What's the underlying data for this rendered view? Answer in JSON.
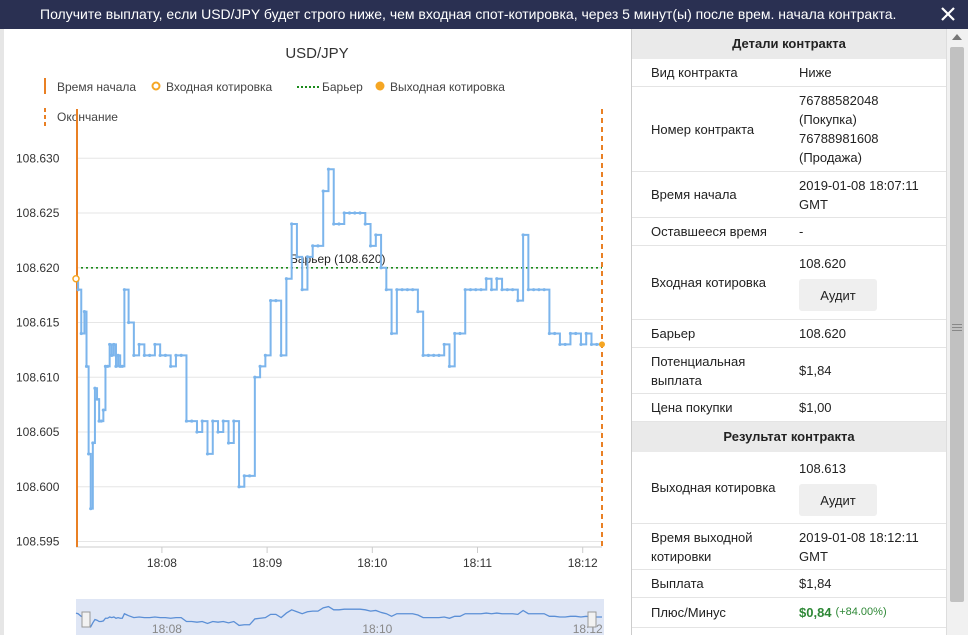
{
  "topbar": {
    "message": "Получите выплату, если USD/JPY будет строго ниже, чем входная спот-котировка, через 5 минут(ы) после врем. начала контракта."
  },
  "chart": {
    "title": "USD/JPY",
    "legend": {
      "start_time": "Время начала",
      "entry_spot": "Входная котировка",
      "barrier": "Барьер",
      "exit_spot": "Выходная котировка",
      "end": "Окончание"
    },
    "barrier_label": "Барьер (108.620)",
    "colors": {
      "line": "#7cb5ec",
      "start_line": "#e98024",
      "barrier": "#1a8a1a",
      "entry": "#f5a623",
      "navigator_fill": "#c9d6ee"
    }
  },
  "chart_data": {
    "type": "line",
    "title": "USD/JPY",
    "xlabel": "",
    "ylabel": "",
    "ylim": [
      108.595,
      108.632
    ],
    "yticks": [
      "108.595",
      "108.600",
      "108.605",
      "108.610",
      "108.615",
      "108.620",
      "108.625",
      "108.630"
    ],
    "xticks": [
      "18:08",
      "18:09",
      "18:10",
      "18:11",
      "18:12"
    ],
    "barrier": 108.62,
    "start_time": "18:07:11",
    "end_time": "18:12:11",
    "series": [
      {
        "x_minutes": [
          0.0,
          0.02,
          0.05,
          0.08,
          0.1,
          0.12,
          0.14,
          0.16,
          0.18,
          0.2,
          0.22,
          0.24,
          0.26,
          0.28,
          0.3,
          0.32,
          0.34,
          0.36,
          0.38,
          0.4,
          0.42,
          0.44,
          0.46,
          0.5,
          0.55,
          0.6,
          0.65,
          0.7,
          0.75,
          0.8,
          0.85,
          0.9,
          0.95,
          1.0,
          1.05,
          1.1,
          1.15,
          1.2,
          1.25,
          1.3,
          1.35,
          1.4,
          1.45,
          1.5,
          1.55,
          1.6,
          1.65,
          1.7,
          1.75,
          1.8,
          1.85,
          1.9,
          1.95,
          2.0,
          2.05,
          2.1,
          2.15,
          2.2,
          2.25,
          2.3,
          2.35,
          2.4,
          2.45,
          2.5,
          2.55,
          2.6,
          2.65,
          2.7,
          2.75,
          2.8,
          2.85,
          2.9,
          2.95,
          3.0,
          3.05,
          3.1,
          3.15,
          3.2,
          3.25,
          3.3,
          3.35,
          3.4,
          3.45,
          3.5,
          3.55,
          3.6,
          3.65,
          3.7,
          3.75,
          3.8,
          3.85,
          3.9,
          3.95,
          4.0,
          4.05,
          4.1,
          4.15,
          4.2,
          4.25,
          4.3,
          4.35,
          4.4,
          4.45,
          4.5,
          4.55,
          4.6,
          4.65,
          4.7,
          4.75,
          4.8,
          4.85,
          4.9,
          4.95,
          5.0
        ],
        "values": [
          108.619,
          108.618,
          108.614,
          108.616,
          108.611,
          108.603,
          108.598,
          108.604,
          108.609,
          108.608,
          108.606,
          108.606,
          108.607,
          108.611,
          108.611,
          108.613,
          108.612,
          108.613,
          108.611,
          108.612,
          108.611,
          108.611,
          108.618,
          108.615,
          108.612,
          108.613,
          108.612,
          108.612,
          108.613,
          108.612,
          108.612,
          108.611,
          108.612,
          108.612,
          108.606,
          108.606,
          108.605,
          108.606,
          108.603,
          108.606,
          108.605,
          108.606,
          108.604,
          108.606,
          108.6,
          108.601,
          108.601,
          108.61,
          108.611,
          108.612,
          108.617,
          108.617,
          108.612,
          108.619,
          108.624,
          108.621,
          108.618,
          108.621,
          108.622,
          108.622,
          108.627,
          108.629,
          108.624,
          108.624,
          108.625,
          108.625,
          108.625,
          108.625,
          108.624,
          108.622,
          108.623,
          108.62,
          108.618,
          108.614,
          108.618,
          108.618,
          108.618,
          108.618,
          108.616,
          108.612,
          108.612,
          108.612,
          108.612,
          108.613,
          108.611,
          108.614,
          108.614,
          108.618,
          108.618,
          108.618,
          108.618,
          108.619,
          108.618,
          108.619,
          108.618,
          108.618,
          108.618,
          108.617,
          108.623,
          108.618,
          108.618,
          108.618,
          108.618,
          108.614,
          108.614,
          108.613,
          108.613,
          108.614,
          108.614,
          108.613,
          108.614,
          108.613,
          108.613,
          108.613
        ]
      }
    ]
  },
  "details": {
    "header": "Детали контракта",
    "rows": {
      "contract_type": {
        "label": "Вид контракта",
        "value": "Ниже"
      },
      "contract_id": {
        "label": "Номер контракта",
        "value_1": "76788582048",
        "value_2": "(Покупка)",
        "value_3": "76788981608",
        "value_4": "(Продажа)"
      },
      "start_time": {
        "label": "Время начала",
        "value_1": "2019-01-08 18:07:11",
        "value_2": "GMT"
      },
      "remaining": {
        "label": "Оставшееся время",
        "value": "-"
      },
      "entry_spot": {
        "label": "Входная котировка",
        "value": "108.620",
        "button": "Аудит"
      },
      "barrier": {
        "label": "Барьер",
        "value": "108.620"
      },
      "payout": {
        "label_1": "Потенциальная",
        "label_2": "выплата",
        "value": "$1,84"
      },
      "purchase_price": {
        "label": "Цена покупки",
        "value": "$1,00"
      }
    }
  },
  "result": {
    "header": "Результат контракта",
    "rows": {
      "exit_spot": {
        "label": "Выходная котировка",
        "value": "108.613",
        "button": "Аудит"
      },
      "exit_time": {
        "label_1": "Время выходной",
        "label_2": "котировки",
        "value_1": "2019-01-08 18:12:11",
        "value_2": "GMT"
      },
      "payout": {
        "label": "Выплата",
        "value": "$1,84"
      },
      "profit": {
        "label": "Плюс/Минус",
        "value": "$0,84",
        "percent": "(+84.00%)"
      }
    }
  }
}
